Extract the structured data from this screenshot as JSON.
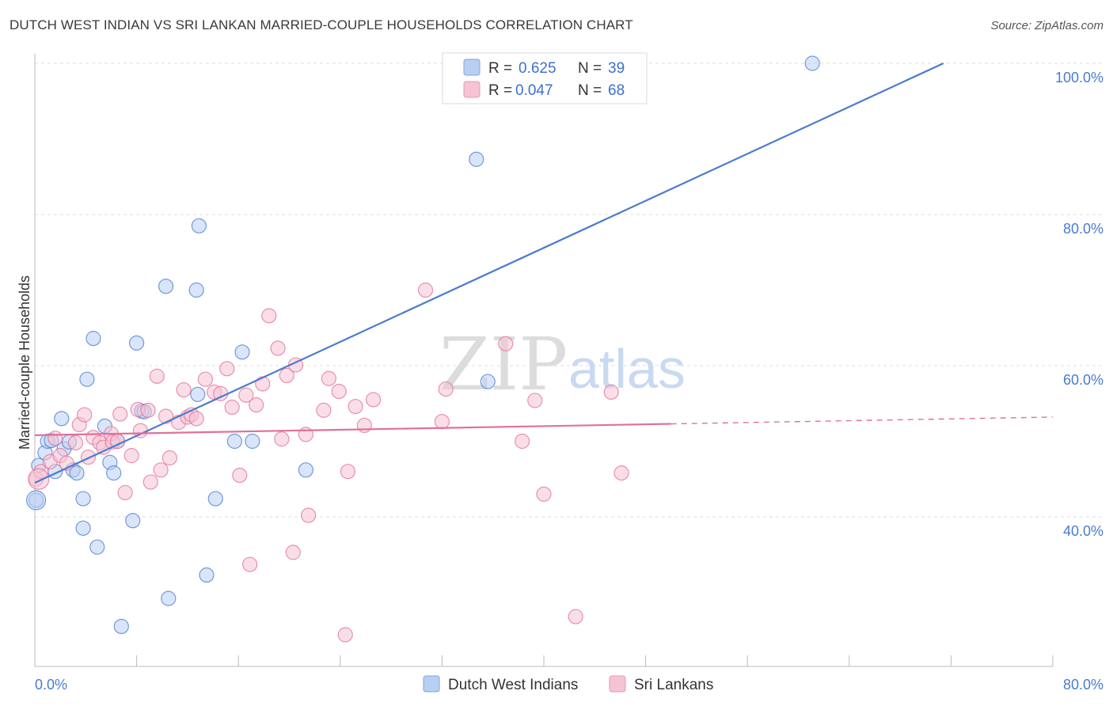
{
  "header": {
    "title": "DUTCH WEST INDIAN VS SRI LANKAN MARRIED-COUPLE HOUSEHOLDS CORRELATION CHART",
    "source": "Source: ZipAtlas.com"
  },
  "watermark": {
    "zip": "ZIP",
    "atlas": "atlas"
  },
  "chart_data": {
    "type": "scatter",
    "title": "DUTCH WEST INDIAN VS SRI LANKAN MARRIED-COUPLE HOUSEHOLDS CORRELATION CHART",
    "xlabel": "",
    "ylabel": "Married-couple Households",
    "xlim": [
      0,
      80
    ],
    "ylim": [
      20,
      102
    ],
    "x_tick_labels": {
      "min": "0.0%",
      "max": "80.0%"
    },
    "y_ticks": [
      {
        "value": 40,
        "label": "40.0%"
      },
      {
        "value": 60,
        "label": "60.0%"
      },
      {
        "value": 80,
        "label": "80.0%"
      },
      {
        "value": 100,
        "label": "100.0%"
      }
    ],
    "legend": {
      "r_label": "R =",
      "n_label": "N ="
    },
    "series": [
      {
        "name": "Dutch West Indians",
        "color": "#4a7bd0",
        "fill": "#b9cff2",
        "r": "0.625",
        "n": "39",
        "trend": {
          "x0": 0,
          "y0": 44.5,
          "x1": 71.4,
          "y1": 100
        },
        "points": [
          [
            0.1,
            42.2
          ],
          [
            0.3,
            46.8
          ],
          [
            0.8,
            48.5
          ],
          [
            1.0,
            50.0
          ],
          [
            1.3,
            50.1
          ],
          [
            1.6,
            46.0
          ],
          [
            2.1,
            53.0
          ],
          [
            2.3,
            49.0
          ],
          [
            2.7,
            49.9
          ],
          [
            3.0,
            46.2
          ],
          [
            3.3,
            45.8
          ],
          [
            3.8,
            42.4
          ],
          [
            3.8,
            38.5
          ],
          [
            4.1,
            58.2
          ],
          [
            4.6,
            63.6
          ],
          [
            4.9,
            36.0
          ],
          [
            5.5,
            52.0
          ],
          [
            5.9,
            47.2
          ],
          [
            6.2,
            45.8
          ],
          [
            6.5,
            50.0
          ],
          [
            6.8,
            25.5
          ],
          [
            7.7,
            39.5
          ],
          [
            8.0,
            63.0
          ],
          [
            8.4,
            54.0
          ],
          [
            8.6,
            53.9
          ],
          [
            10.3,
            70.5
          ],
          [
            10.5,
            29.2
          ],
          [
            12.7,
            70.0
          ],
          [
            12.8,
            56.2
          ],
          [
            12.9,
            78.5
          ],
          [
            13.5,
            32.3
          ],
          [
            14.2,
            42.4
          ],
          [
            15.7,
            50.0
          ],
          [
            16.3,
            61.8
          ],
          [
            17.1,
            50.0
          ],
          [
            21.3,
            46.2
          ],
          [
            34.7,
            87.3
          ],
          [
            35.6,
            57.9
          ],
          [
            61.1,
            100.0
          ]
        ]
      },
      {
        "name": "Sri Lankans",
        "color": "#e0709a",
        "fill": "#f6c3d3",
        "r": "0.047",
        "n": "68",
        "trend": {
          "x0": 0,
          "y0": 50.8,
          "x1": 50.0,
          "y1": 52.3
        },
        "trend_dashed": {
          "x0": 50.0,
          "y0": 52.3,
          "x1": 80.0,
          "y1": 53.2
        },
        "points": [
          [
            0.1,
            45.0
          ],
          [
            0.5,
            46.0
          ],
          [
            1.2,
            47.3
          ],
          [
            1.6,
            50.4
          ],
          [
            2.0,
            48.1
          ],
          [
            2.5,
            47.1
          ],
          [
            3.2,
            49.8
          ],
          [
            3.5,
            52.2
          ],
          [
            3.9,
            53.5
          ],
          [
            4.2,
            47.9
          ],
          [
            4.6,
            50.5
          ],
          [
            5.1,
            49.8
          ],
          [
            5.4,
            49.2
          ],
          [
            6.0,
            51.0
          ],
          [
            6.1,
            49.9
          ],
          [
            6.5,
            50.0
          ],
          [
            6.7,
            53.6
          ],
          [
            7.1,
            43.2
          ],
          [
            7.6,
            48.1
          ],
          [
            8.1,
            54.2
          ],
          [
            8.3,
            51.4
          ],
          [
            8.9,
            54.1
          ],
          [
            9.1,
            44.6
          ],
          [
            9.6,
            58.6
          ],
          [
            9.9,
            46.2
          ],
          [
            10.3,
            53.3
          ],
          [
            10.6,
            47.8
          ],
          [
            11.3,
            52.5
          ],
          [
            11.7,
            56.8
          ],
          [
            12.0,
            53.2
          ],
          [
            12.3,
            53.5
          ],
          [
            12.7,
            53.0
          ],
          [
            13.4,
            58.2
          ],
          [
            14.1,
            56.5
          ],
          [
            14.6,
            56.3
          ],
          [
            15.1,
            59.6
          ],
          [
            15.5,
            54.5
          ],
          [
            16.1,
            45.5
          ],
          [
            16.6,
            56.1
          ],
          [
            16.9,
            33.7
          ],
          [
            17.4,
            54.8
          ],
          [
            17.9,
            57.6
          ],
          [
            18.4,
            66.6
          ],
          [
            19.1,
            62.3
          ],
          [
            19.4,
            50.3
          ],
          [
            19.8,
            58.7
          ],
          [
            20.3,
            35.3
          ],
          [
            20.5,
            60.1
          ],
          [
            21.3,
            50.9
          ],
          [
            21.5,
            40.2
          ],
          [
            22.7,
            54.1
          ],
          [
            23.1,
            58.3
          ],
          [
            23.9,
            56.6
          ],
          [
            24.4,
            24.4
          ],
          [
            24.6,
            46.0
          ],
          [
            25.2,
            54.6
          ],
          [
            25.9,
            52.1
          ],
          [
            26.6,
            55.5
          ],
          [
            30.7,
            70.0
          ],
          [
            32.0,
            52.6
          ],
          [
            32.3,
            56.9
          ],
          [
            37.0,
            62.9
          ],
          [
            38.3,
            50.0
          ],
          [
            39.3,
            55.4
          ],
          [
            40.0,
            43.0
          ],
          [
            42.5,
            26.8
          ],
          [
            45.3,
            56.5
          ],
          [
            46.1,
            45.8
          ]
        ]
      }
    ]
  }
}
